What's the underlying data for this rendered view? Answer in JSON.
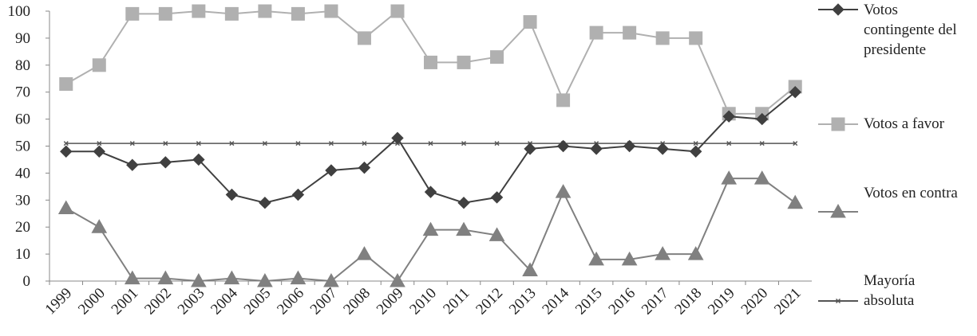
{
  "chart_data": {
    "type": "line",
    "categories": [
      "1999",
      "2000",
      "2001",
      "2002",
      "2003",
      "2004",
      "2005",
      "2006",
      "2007",
      "2008",
      "2009",
      "2010",
      "2011",
      "2012",
      "2013",
      "2014",
      "2015",
      "2016",
      "2017",
      "2018",
      "2019",
      "2020",
      "2021"
    ],
    "series": [
      {
        "name": "Votos contingente del presidente",
        "color": "#404040",
        "marker": "diamond",
        "values": [
          48,
          48,
          43,
          44,
          45,
          32,
          29,
          32,
          41,
          42,
          53,
          33,
          29,
          31,
          49,
          50,
          49,
          50,
          49,
          48,
          61,
          60,
          70
        ]
      },
      {
        "name": "Votos a favor",
        "color": "#b0b0b0",
        "marker": "square",
        "values": [
          73,
          80,
          99,
          99,
          100,
          99,
          100,
          99,
          100,
          90,
          100,
          81,
          81,
          83,
          96,
          67,
          92,
          92,
          90,
          90,
          62,
          62,
          72
        ]
      },
      {
        "name": "Votos en contra",
        "color": "#808080",
        "marker": "triangle",
        "values": [
          27,
          20,
          1,
          1,
          0,
          1,
          0,
          1,
          0,
          10,
          0,
          19,
          19,
          17,
          4,
          33,
          8,
          8,
          10,
          10,
          38,
          38,
          29
        ]
      },
      {
        "name": "Mayoría absoluta",
        "color": "#555555",
        "marker": "x",
        "values": [
          51,
          51,
          51,
          51,
          51,
          51,
          51,
          51,
          51,
          51,
          51,
          51,
          51,
          51,
          51,
          51,
          51,
          51,
          51,
          51,
          51,
          51,
          51
        ]
      }
    ],
    "ylim": [
      0,
      100
    ],
    "yticks": [
      0,
      10,
      20,
      30,
      40,
      50,
      60,
      70,
      80,
      90,
      100
    ],
    "legend": "right"
  }
}
